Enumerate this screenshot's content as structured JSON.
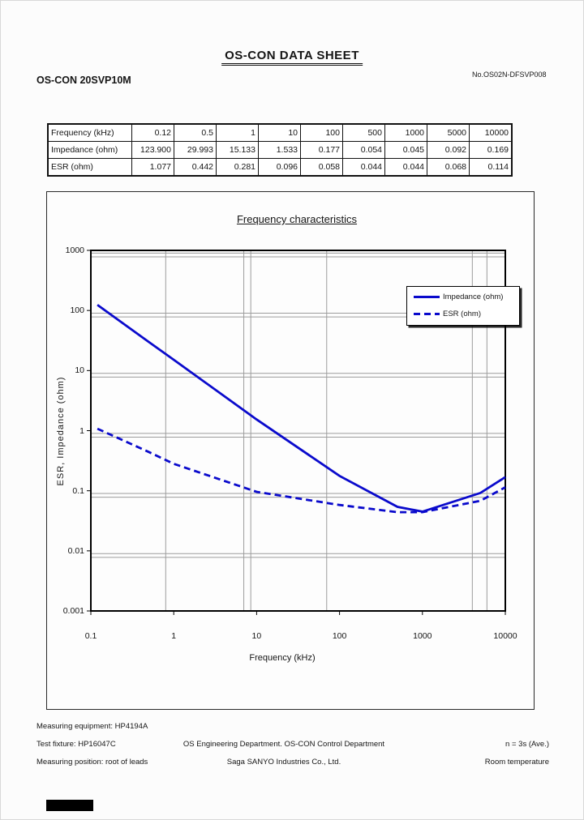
{
  "header": {
    "title": "OS-CON DATA SHEET",
    "part_number": "OS-CON 20SVP10M",
    "doc_number": "No.OS02N-DFSVP008"
  },
  "table": {
    "rows": [
      {
        "label": "Frequency (kHz)",
        "values": [
          "0.12",
          "0.5",
          "1",
          "10",
          "100",
          "500",
          "1000",
          "5000",
          "10000"
        ]
      },
      {
        "label": "Impedance (ohm)",
        "values": [
          "123.900",
          "29.993",
          "15.133",
          "1.533",
          "0.177",
          "0.054",
          "0.045",
          "0.092",
          "0.169"
        ]
      },
      {
        "label": "ESR (ohm)",
        "values": [
          "1.077",
          "0.442",
          "0.281",
          "0.096",
          "0.058",
          "0.044",
          "0.044",
          "0.068",
          "0.114"
        ]
      }
    ]
  },
  "chart_data": {
    "type": "line",
    "title": "Frequency characteristics",
    "xlabel": "Frequency (kHz)",
    "ylabel": "ESR, Impedance (ohm)",
    "x_scale": "log",
    "y_scale": "log",
    "xlim": [
      0.1,
      10000
    ],
    "ylim": [
      0.001,
      1000
    ],
    "x_ticks": [
      0.1,
      1,
      10,
      100,
      1000,
      10000
    ],
    "x_tick_labels": [
      "0.1",
      "1",
      "10",
      "100",
      "1000",
      "10000"
    ],
    "y_ticks": [
      1000,
      100,
      10,
      1,
      0.1,
      0.01,
      0.001
    ],
    "y_tick_labels": [
      "1000",
      "100",
      "10",
      "1",
      "0.1",
      "0.01",
      "0.001"
    ],
    "x": [
      0.12,
      0.5,
      1,
      10,
      100,
      500,
      1000,
      5000,
      10000
    ],
    "series": [
      {
        "name": "Impedance (ohm)",
        "style": "solid",
        "color": "#0a0acc",
        "values": [
          123.9,
          29.993,
          15.133,
          1.533,
          0.177,
          0.054,
          0.045,
          0.092,
          0.169
        ]
      },
      {
        "name": "ESR (ohm)",
        "style": "dashed",
        "color": "#0a0acc",
        "values": [
          1.077,
          0.442,
          0.281,
          0.096,
          0.058,
          0.044,
          0.044,
          0.068,
          0.114
        ]
      }
    ],
    "legend_position": "upper-right",
    "grid": {
      "on": true,
      "color": "#9c9c9c",
      "x_line_values": [
        0.8,
        7,
        8.5,
        70,
        4000,
        6000
      ],
      "y_decade_factors": [
        0.9,
        0.78
      ]
    }
  },
  "footer": {
    "left": [
      "Measuring equipment: HP4194A",
      "Test fixture: HP16047C",
      "Measuring position: root of leads"
    ],
    "center": [
      "OS Engineering Department. OS-CON Control Department",
      "Saga SANYO Industries Co., Ltd."
    ],
    "right": [
      "n = 3s (Ave.)",
      "Room temperature"
    ]
  }
}
